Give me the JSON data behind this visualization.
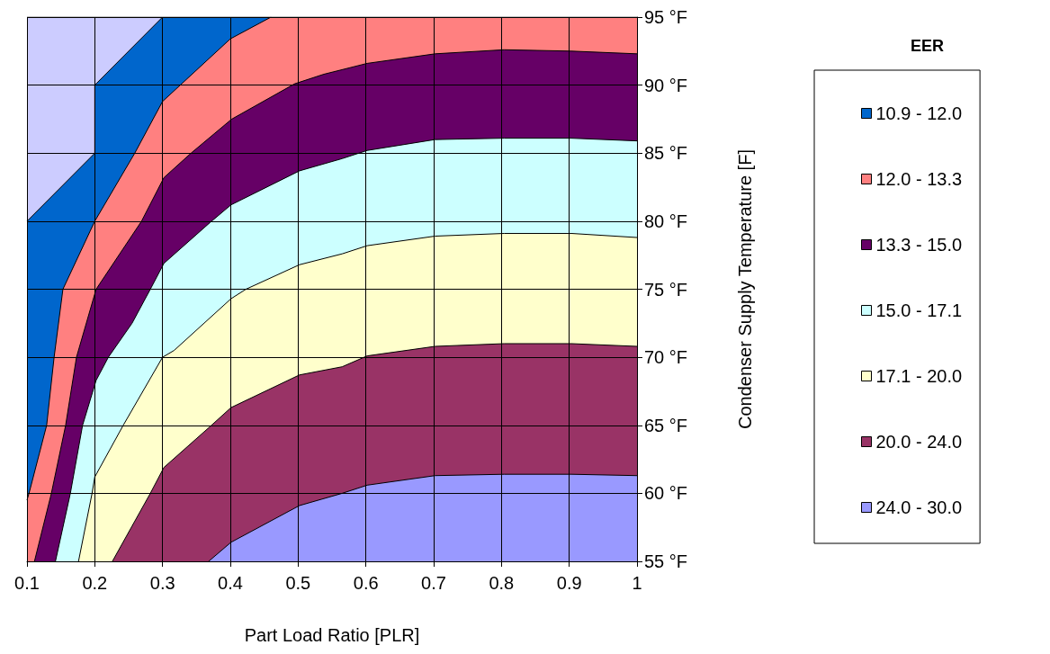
{
  "chart_data": {
    "type": "area",
    "xlabel": "Part Load Ratio [PLR]",
    "ylabel": "Condenser Supply Temperature [F]",
    "legend_title": "EER",
    "xlim": [
      0.1,
      1
    ],
    "xticks": [
      0.1,
      0.2,
      0.3,
      0.4,
      0.5,
      0.6,
      0.7,
      0.8,
      0.9,
      1
    ],
    "ylim": [
      55,
      95
    ],
    "yticks": [
      {
        "value": 55,
        "label": "55 °F"
      },
      {
        "value": 60,
        "label": "60 °F"
      },
      {
        "value": 65,
        "label": "65 °F"
      },
      {
        "value": 70,
        "label": "70 °F"
      },
      {
        "value": 75,
        "label": "75 °F"
      },
      {
        "value": 80,
        "label": "80 °F"
      },
      {
        "value": 85,
        "label": "85 °F"
      },
      {
        "value": 90,
        "label": "90 °F"
      },
      {
        "value": 95,
        "label": "95 °F"
      }
    ],
    "grid": true,
    "legend": "right",
    "marker": "none",
    "series": [
      {
        "name": "24.0 - 30.0",
        "color": "#9999ff",
        "x": [
          0.368,
          0.401,
          0.502,
          0.565,
          0.602,
          0.702,
          0.804,
          0.903,
          1
        ],
        "values": [
          55,
          56.4,
          59.1,
          60,
          60.6,
          61.3,
          61.4,
          61.4,
          61.3
        ]
      },
      {
        "name": "20.0 - 24.0",
        "color": "#993366",
        "x": [
          0.226,
          0.282,
          0.302,
          0.37,
          0.401,
          0.502,
          0.565,
          0.602,
          0.702,
          0.804,
          0.903,
          1
        ],
        "values": [
          55,
          60,
          61.9,
          64.9,
          66.3,
          68.7,
          69.3,
          70.1,
          70.8,
          71,
          71,
          70.8
        ]
      },
      {
        "name": "17.1 - 20.0",
        "color": "#ffffcc",
        "x": [
          0.176,
          0.196,
          0.2,
          0.242,
          0.3,
          0.317,
          0.401,
          0.423,
          0.502,
          0.565,
          0.602,
          0.702,
          0.804,
          0.903,
          1
        ],
        "values": [
          55,
          60,
          61.2,
          65,
          70,
          70.5,
          74.3,
          75,
          76.8,
          77.6,
          78.2,
          78.9,
          79.1,
          79.1,
          78.8
        ]
      },
      {
        "name": "15.0 - 17.1",
        "color": "#ccffff",
        "x": [
          0.142,
          0.164,
          0.182,
          0.202,
          0.22,
          0.255,
          0.282,
          0.302,
          0.37,
          0.401,
          0.502,
          0.565,
          0.602,
          0.702,
          0.804,
          0.903,
          1
        ],
        "values": [
          55,
          60,
          65,
          68.3,
          70,
          72.5,
          75,
          76.9,
          79.9,
          81.2,
          83.7,
          84.6,
          85.2,
          86,
          86.1,
          86.1,
          85.9
        ]
      },
      {
        "name": "13.3 - 15.0",
        "color": "#660066",
        "x": [
          0.111,
          0.136,
          0.157,
          0.173,
          0.202,
          0.269,
          0.302,
          0.342,
          0.402,
          0.495,
          0.538,
          0.602,
          0.702,
          0.804,
          0.903,
          1
        ],
        "values": [
          55,
          60,
          65,
          70,
          75,
          80,
          83.2,
          85,
          87.5,
          90.1,
          90.8,
          91.6,
          92.3,
          92.6,
          92.5,
          92.3
        ]
      },
      {
        "name": "12.0 - 13.3",
        "color": "#ff8080",
        "x": [
          0.1,
          0.103,
          0.129,
          0.14,
          0.153,
          0.2,
          0.259,
          0.3,
          0.4,
          0.46,
          1
        ],
        "values": [
          59.5,
          60,
          65,
          70,
          75,
          80,
          85,
          88.8,
          93.4,
          95,
          95
        ]
      },
      {
        "name": "10.9 - 12.0",
        "color": "#0066cc",
        "x": [
          0.1,
          0.2,
          0.2,
          0.3,
          0.46
        ],
        "values": [
          80,
          85,
          90,
          95,
          95
        ]
      },
      {
        "color": "#ccccff",
        "x": [
          0.1,
          0.3
        ],
        "values": [
          95,
          95
        ]
      }
    ]
  }
}
